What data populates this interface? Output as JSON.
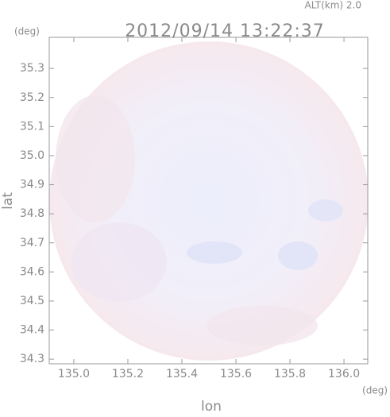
{
  "chart_data": {
    "type": "radar-map",
    "title": "2012/09/14 13:22:37",
    "altitude_label": "ALT(km) 2.0",
    "y_unit": "(deg)",
    "x_unit": "(deg)",
    "ylabel": "lat",
    "xlabel": "lon",
    "xlim": [
      134.909,
      136.088
    ],
    "ylim": [
      34.284,
      35.407
    ],
    "xticks": [
      {
        "value": 135.0,
        "label": "135.0"
      },
      135.2,
      135.4,
      135.6,
      135.8,
      {
        "value": 136.0,
        "label": "136.0"
      }
    ],
    "yticks": [
      34.3,
      34.4,
      34.5,
      34.6,
      34.7,
      34.8,
      34.9,
      {
        "value": 35.0,
        "label": "35.0"
      },
      35.1,
      35.2,
      35.3
    ]
  }
}
